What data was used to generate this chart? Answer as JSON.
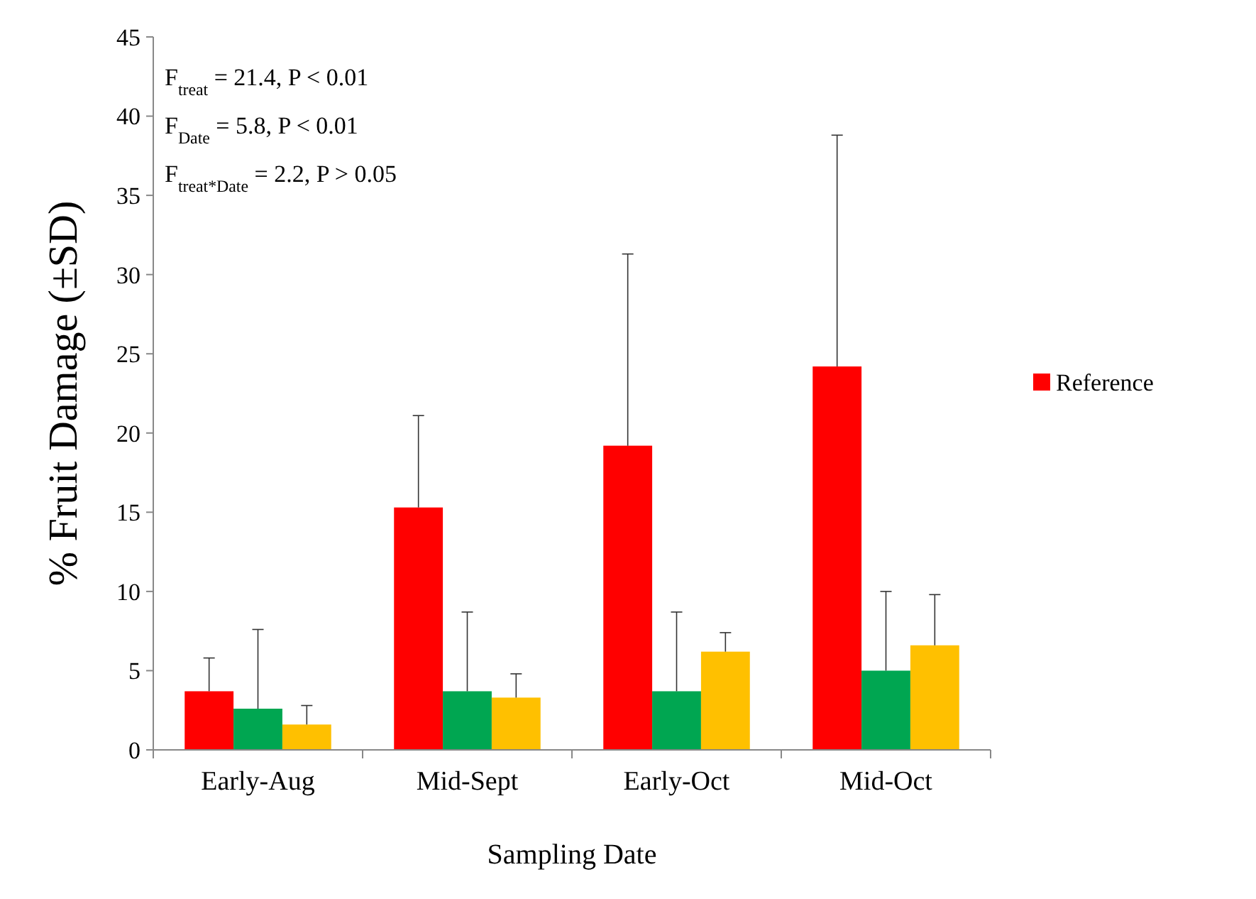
{
  "chart_data": {
    "type": "bar",
    "xlabel": "Sampling Date",
    "ylabel": "% Fruit Damage (±SD)",
    "categories": [
      "Early-Aug",
      "Mid-Sept",
      "Early-Oct",
      "Mid-Oct"
    ],
    "series": [
      {
        "name": "Reference",
        "color": "#ff0000",
        "values": [
          3.7,
          15.3,
          19.2,
          24.2
        ],
        "errors": [
          [
            3.7,
            5.8
          ],
          [
            15.3,
            21.1
          ],
          [
            19.2,
            31.3
          ],
          [
            24.2,
            38.8
          ]
        ]
      },
      {
        "color": "#00a651",
        "values": [
          2.6,
          3.7,
          3.7,
          5.0
        ],
        "errors": [
          [
            2.6,
            7.6
          ],
          [
            3.7,
            8.7
          ],
          [
            3.7,
            8.7
          ],
          [
            5.0,
            10.0
          ]
        ]
      },
      {
        "color": "#ffc000",
        "values": [
          1.6,
          3.3,
          6.2,
          6.6
        ],
        "errors": [
          [
            1.6,
            2.8
          ],
          [
            3.3,
            4.8
          ],
          [
            6.2,
            7.4
          ],
          [
            6.6,
            9.8
          ]
        ]
      }
    ],
    "ylim": [
      0,
      45
    ],
    "yticks": [
      0,
      5,
      10,
      15,
      20,
      25,
      30,
      35,
      40,
      45
    ],
    "grid": false,
    "legend": "right",
    "annotations": [
      "F$_{treat}$ =  21.4, P < 0.01",
      "F$_{Date}$ =  5.8, P < 0.01",
      "F$_{treat*Date}$ =  2.2, P > 0.05"
    ]
  }
}
